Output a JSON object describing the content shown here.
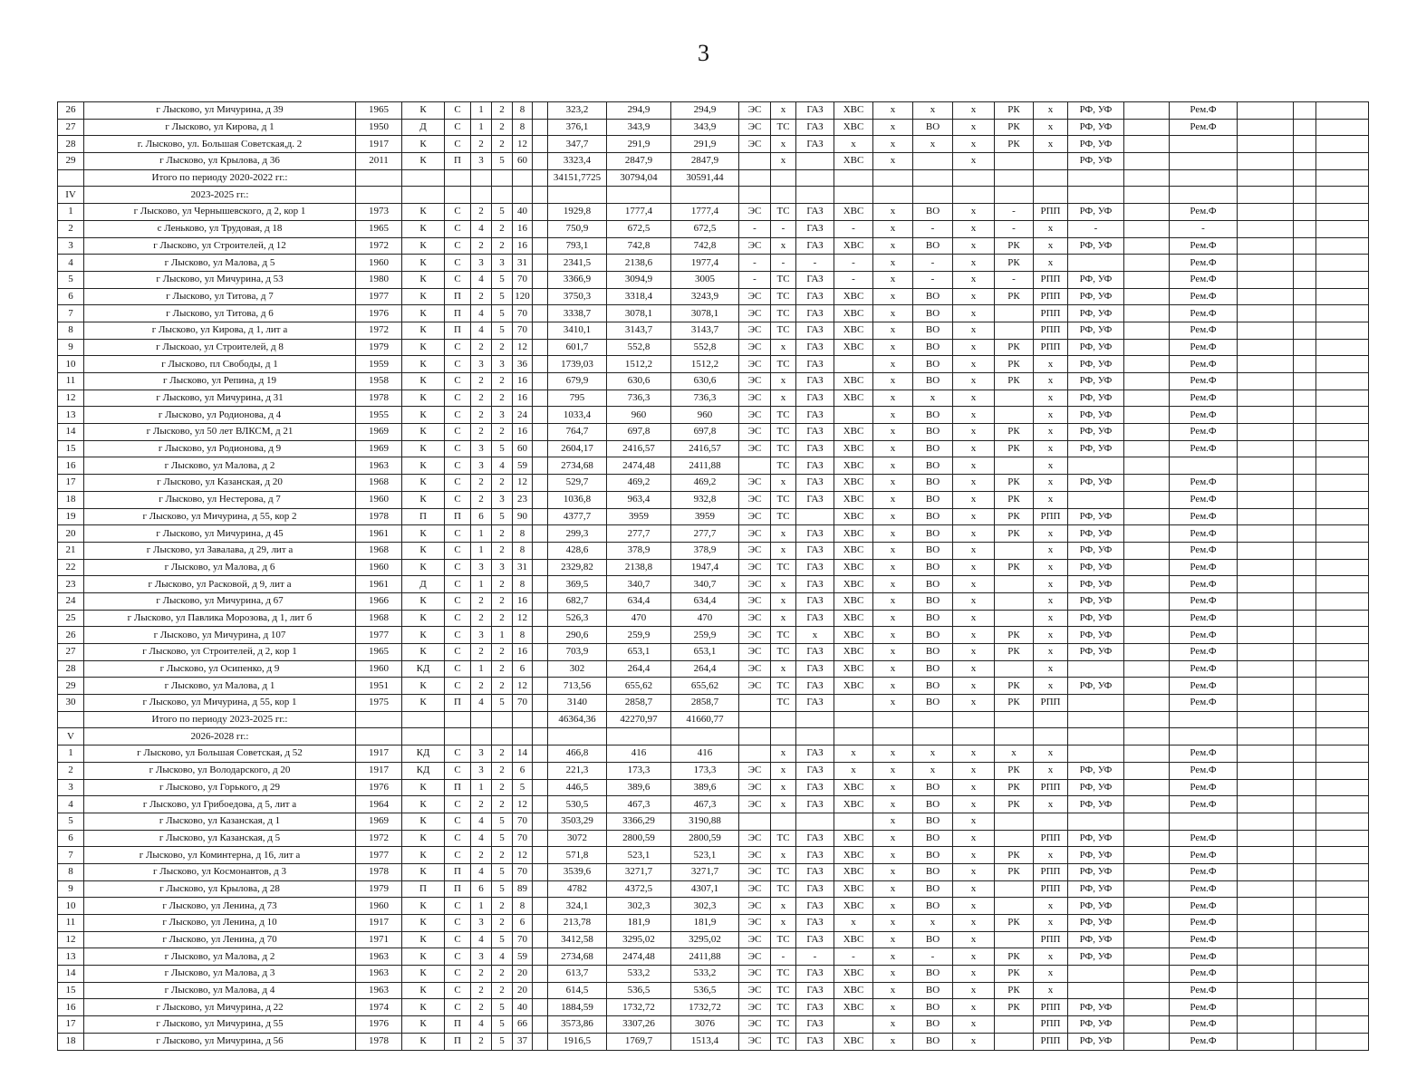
{
  "page_number": "3",
  "rows": [
    [
      "26",
      "г Лысково, ул Мичурина, д 39",
      "1965",
      "К",
      "С",
      "1",
      "2",
      "8",
      "323,2",
      "294,9",
      "294,9",
      "ЭС",
      "х",
      "ГАЗ",
      "ХВС",
      "х",
      "х",
      "х",
      "РК",
      "х",
      "РФ, УФ",
      "Рем.Ф"
    ],
    [
      "27",
      "г Лысково, ул Кирова, д 1",
      "1950",
      "Д",
      "С",
      "1",
      "2",
      "8",
      "376,1",
      "343,9",
      "343,9",
      "ЭС",
      "ТС",
      "ГАЗ",
      "ХВС",
      "х",
      "ВО",
      "х",
      "РК",
      "х",
      "РФ, УФ",
      "Рем.Ф"
    ],
    [
      "28",
      "г. Лысково, ул. Большая Советская,д. 2",
      "1917",
      "К",
      "С",
      "2",
      "2",
      "12",
      "347,7",
      "291,9",
      "291,9",
      "ЭС",
      "х",
      "ГАЗ",
      "х",
      "х",
      "х",
      "х",
      "РК",
      "х",
      "РФ, УФ",
      ""
    ],
    [
      "29",
      "г Лысково, ул Крылова, д 36",
      "2011",
      "К",
      "П",
      "3",
      "5",
      "60",
      "3323,4",
      "2847,9",
      "2847,9",
      "",
      "х",
      "",
      "ХВС",
      "х",
      "",
      "х",
      "",
      "",
      "РФ, УФ",
      ""
    ],
    [
      "",
      "Итого по периоду 2020-2022 гг.:",
      "",
      "",
      "",
      "",
      "",
      "",
      "34151,7725",
      "30794,04",
      "30591,44",
      "",
      "",
      "",
      "",
      "",
      "",
      "",
      "",
      "",
      "",
      ""
    ],
    [
      "IV",
      "2023-2025 гг.:",
      "",
      "",
      "",
      "",
      "",
      "",
      "",
      "",
      "",
      "",
      "",
      "",
      "",
      "",
      "",
      "",
      "",
      "",
      "",
      ""
    ],
    [
      "1",
      "г Лысково, ул Чернышевского, д 2, кор 1",
      "1973",
      "К",
      "С",
      "2",
      "5",
      "40",
      "1929,8",
      "1777,4",
      "1777,4",
      "ЭС",
      "ТС",
      "ГАЗ",
      "ХВС",
      "х",
      "ВО",
      "х",
      "-",
      "РПП",
      "РФ, УФ",
      "Рем.Ф"
    ],
    [
      "2",
      "с Леньково, ул Трудовая, д 18",
      "1965",
      "К",
      "С",
      "4",
      "2",
      "16",
      "750,9",
      "672,5",
      "672,5",
      "-",
      "-",
      "ГАЗ",
      "-",
      "х",
      "-",
      "х",
      "-",
      "х",
      "-",
      "-"
    ],
    [
      "3",
      "г Лысково, ул Строителей, д 12",
      "1972",
      "К",
      "С",
      "2",
      "2",
      "16",
      "793,1",
      "742,8",
      "742,8",
      "ЭС",
      "х",
      "ГАЗ",
      "ХВС",
      "х",
      "ВО",
      "х",
      "РК",
      "х",
      "РФ, УФ",
      "Рем.Ф"
    ],
    [
      "4",
      "г Лысково, ул Малова, д 5",
      "1960",
      "К",
      "С",
      "3",
      "3",
      "31",
      "2341,5",
      "2138,6",
      "1977,4",
      "-",
      "-",
      "-",
      "-",
      "х",
      "-",
      "х",
      "РК",
      "х",
      "",
      "Рем.Ф"
    ],
    [
      "5",
      "г Лысково, ул Мичурина, д 53",
      "1980",
      "К",
      "С",
      "4",
      "5",
      "70",
      "3366,9",
      "3094,9",
      "3005",
      "-",
      "ТС",
      "ГАЗ",
      "-",
      "х",
      "-",
      "х",
      "-",
      "РПП",
      "РФ, УФ",
      "Рем.Ф"
    ],
    [
      "6",
      "г Лысково, ул Титова, д 7",
      "1977",
      "К",
      "П",
      "2",
      "5",
      "120",
      "3750,3",
      "3318,4",
      "3243,9",
      "ЭС",
      "ТС",
      "ГАЗ",
      "ХВС",
      "х",
      "ВО",
      "х",
      "РК",
      "РПП",
      "РФ, УФ",
      "Рем.Ф"
    ],
    [
      "7",
      "г Лысково, ул Титова, д 6",
      "1976",
      "К",
      "П",
      "4",
      "5",
      "70",
      "3338,7",
      "3078,1",
      "3078,1",
      "ЭС",
      "ТС",
      "ГАЗ",
      "ХВС",
      "х",
      "ВО",
      "х",
      "",
      "РПП",
      "РФ, УФ",
      "Рем.Ф"
    ],
    [
      "8",
      "г Лысково, ул Кирова, д 1, лит а",
      "1972",
      "К",
      "П",
      "4",
      "5",
      "70",
      "3410,1",
      "3143,7",
      "3143,7",
      "ЭС",
      "ТС",
      "ГАЗ",
      "ХВС",
      "х",
      "ВО",
      "х",
      "",
      "РПП",
      "РФ, УФ",
      "Рем.Ф"
    ],
    [
      "9",
      "г Лыскоао, ул Строителей, д 8",
      "1979",
      "К",
      "С",
      "2",
      "2",
      "12",
      "601,7",
      "552,8",
      "552,8",
      "ЭС",
      "х",
      "ГАЗ",
      "ХВС",
      "х",
      "ВО",
      "х",
      "РК",
      "РПП",
      "РФ, УФ",
      "Рем.Ф"
    ],
    [
      "10",
      "г Лысково, пл Свободы, д 1",
      "1959",
      "К",
      "С",
      "3",
      "3",
      "36",
      "1739,03",
      "1512,2",
      "1512,2",
      "ЭС",
      "ТС",
      "ГАЗ",
      "",
      "х",
      "ВО",
      "х",
      "РК",
      "х",
      "РФ, УФ",
      "Рем.Ф"
    ],
    [
      "11",
      "г Лысково, ул Репина, д 19",
      "1958",
      "К",
      "С",
      "2",
      "2",
      "16",
      "679,9",
      "630,6",
      "630,6",
      "ЭС",
      "х",
      "ГАЗ",
      "ХВС",
      "х",
      "ВО",
      "х",
      "РК",
      "х",
      "РФ, УФ",
      "Рем.Ф"
    ],
    [
      "12",
      "г Лысково, ул Мичурина, д 31",
      "1978",
      "К",
      "С",
      "2",
      "2",
      "16",
      "795",
      "736,3",
      "736,3",
      "ЭС",
      "х",
      "ГАЗ",
      "ХВС",
      "х",
      "х",
      "х",
      "",
      "х",
      "РФ, УФ",
      "Рем.Ф"
    ],
    [
      "13",
      "г Лысково, ул Родионова, д 4",
      "1955",
      "К",
      "С",
      "2",
      "3",
      "24",
      "1033,4",
      "960",
      "960",
      "ЭС",
      "ТС",
      "ГАЗ",
      "",
      "х",
      "ВО",
      "х",
      "",
      "х",
      "РФ, УФ",
      "Рем.Ф"
    ],
    [
      "14",
      "г Лысково, ул 50 лет ВЛКСМ, д 21",
      "1969",
      "К",
      "С",
      "2",
      "2",
      "16",
      "764,7",
      "697,8",
      "697,8",
      "ЭС",
      "ТС",
      "ГАЗ",
      "ХВС",
      "х",
      "ВО",
      "х",
      "РК",
      "х",
      "РФ, УФ",
      "Рем.Ф"
    ],
    [
      "15",
      "г Лысково, ул Родионова, д 9",
      "1969",
      "К",
      "С",
      "3",
      "5",
      "60",
      "2604,17",
      "2416,57",
      "2416,57",
      "ЭС",
      "ТС",
      "ГАЗ",
      "ХВС",
      "х",
      "ВО",
      "х",
      "РК",
      "х",
      "РФ, УФ",
      "Рем.Ф"
    ],
    [
      "16",
      "г Лысково, ул Малова, д 2",
      "1963",
      "К",
      "С",
      "3",
      "4",
      "59",
      "2734,68",
      "2474,48",
      "2411,88",
      "",
      "ТС",
      "ГАЗ",
      "ХВС",
      "х",
      "ВО",
      "х",
      "",
      "х",
      "",
      ""
    ],
    [
      "17",
      "г Лысково, ул Казанская, д 20",
      "1968",
      "К",
      "С",
      "2",
      "2",
      "12",
      "529,7",
      "469,2",
      "469,2",
      "ЭС",
      "х",
      "ГАЗ",
      "ХВС",
      "х",
      "ВО",
      "х",
      "РК",
      "х",
      "РФ, УФ",
      "Рем.Ф"
    ],
    [
      "18",
      "г Лысково, ул Нестерова, д 7",
      "1960",
      "К",
      "С",
      "2",
      "3",
      "23",
      "1036,8",
      "963,4",
      "932,8",
      "ЭС",
      "ТС",
      "ГАЗ",
      "ХВС",
      "х",
      "ВО",
      "х",
      "РК",
      "х",
      "",
      "Рем.Ф"
    ],
    [
      "19",
      "г Лысково, ул Мичурина, д 55, кор 2",
      "1978",
      "П",
      "П",
      "6",
      "5",
      "90",
      "4377,7",
      "3959",
      "3959",
      "ЭС",
      "ТС",
      "",
      "ХВС",
      "х",
      "ВО",
      "х",
      "РК",
      "РПП",
      "РФ, УФ",
      "Рем.Ф"
    ],
    [
      "20",
      "г Лысково, ул Мичурина, д 45",
      "1961",
      "К",
      "С",
      "1",
      "2",
      "8",
      "299,3",
      "277,7",
      "277,7",
      "ЭС",
      "х",
      "ГАЗ",
      "ХВС",
      "х",
      "ВО",
      "х",
      "РК",
      "х",
      "РФ, УФ",
      "Рем.Ф"
    ],
    [
      "21",
      "г Лысково, ул Завалава, д 29, лит а",
      "1968",
      "К",
      "С",
      "1",
      "2",
      "8",
      "428,6",
      "378,9",
      "378,9",
      "ЭС",
      "х",
      "ГАЗ",
      "ХВС",
      "х",
      "ВО",
      "х",
      "",
      "х",
      "РФ, УФ",
      "Рем.Ф"
    ],
    [
      "22",
      "г Лысково, ул Малова, д 6",
      "1960",
      "К",
      "С",
      "3",
      "3",
      "31",
      "2329,82",
      "2138,8",
      "1947,4",
      "ЭС",
      "ТС",
      "ГАЗ",
      "ХВС",
      "х",
      "ВО",
      "х",
      "РК",
      "х",
      "РФ, УФ",
      "Рем.Ф"
    ],
    [
      "23",
      "г Лысково, ул Расковой, д 9, лит а",
      "1961",
      "Д",
      "С",
      "1",
      "2",
      "8",
      "369,5",
      "340,7",
      "340,7",
      "ЭС",
      "х",
      "ГАЗ",
      "ХВС",
      "х",
      "ВО",
      "х",
      "",
      "х",
      "РФ, УФ",
      "Рем.Ф"
    ],
    [
      "24",
      "г Лысково, ул Мичурина, д 67",
      "1966",
      "К",
      "С",
      "2",
      "2",
      "16",
      "682,7",
      "634,4",
      "634,4",
      "ЭС",
      "х",
      "ГАЗ",
      "ХВС",
      "х",
      "ВО",
      "х",
      "",
      "х",
      "РФ, УФ",
      "Рем.Ф"
    ],
    [
      "25",
      "г Лысково, ул Павлика Морозова, д 1, лит б",
      "1968",
      "К",
      "С",
      "2",
      "2",
      "12",
      "526,3",
      "470",
      "470",
      "ЭС",
      "х",
      "ГАЗ",
      "ХВС",
      "х",
      "ВО",
      "х",
      "",
      "х",
      "РФ, УФ",
      "Рем.Ф"
    ],
    [
      "26",
      "г Лысково, ул Мичурина, д 107",
      "1977",
      "К",
      "С",
      "3",
      "1",
      "8",
      "290,6",
      "259,9",
      "259,9",
      "ЭС",
      "ТС",
      "х",
      "ХВС",
      "х",
      "ВО",
      "х",
      "РК",
      "х",
      "РФ, УФ",
      "Рем.Ф"
    ],
    [
      "27",
      "г Лысково, ул Строителей, д 2, кор 1",
      "1965",
      "К",
      "С",
      "2",
      "2",
      "16",
      "703,9",
      "653,1",
      "653,1",
      "ЭС",
      "ТС",
      "ГАЗ",
      "ХВС",
      "х",
      "ВО",
      "х",
      "РК",
      "х",
      "РФ, УФ",
      "Рем.Ф"
    ],
    [
      "28",
      "г Лысково, ул Осипенко, д 9",
      "1960",
      "КД",
      "С",
      "1",
      "2",
      "6",
      "302",
      "264,4",
      "264,4",
      "ЭС",
      "х",
      "ГАЗ",
      "ХВС",
      "х",
      "ВО",
      "х",
      "",
      "х",
      "",
      "Рем.Ф"
    ],
    [
      "29",
      "г Лысково, ул Малова, д 1",
      "1951",
      "К",
      "С",
      "2",
      "2",
      "12",
      "713,56",
      "655,62",
      "655,62",
      "ЭС",
      "ТС",
      "ГАЗ",
      "ХВС",
      "х",
      "ВО",
      "х",
      "РК",
      "х",
      "РФ, УФ",
      "Рем.Ф"
    ],
    [
      "30",
      "г Лысково, ул Мичурина, д 55, кор 1",
      "1975",
      "К",
      "П",
      "4",
      "5",
      "70",
      "3140",
      "2858,7",
      "2858,7",
      "",
      "ТС",
      "ГАЗ",
      "",
      "х",
      "ВО",
      "х",
      "РК",
      "РПП",
      "",
      "Рем.Ф"
    ],
    [
      "",
      "Итого по периоду 2023-2025 гг.:",
      "",
      "",
      "",
      "",
      "",
      "",
      "46364,36",
      "42270,97",
      "41660,77",
      "",
      "",
      "",
      "",
      "",
      "",
      "",
      "",
      "",
      "",
      ""
    ],
    [
      "V",
      "2026-2028 гг.:",
      "",
      "",
      "",
      "",
      "",
      "",
      "",
      "",
      "",
      "",
      "",
      "",
      "",
      "",
      "",
      "",
      "",
      "",
      "",
      ""
    ],
    [
      "1",
      "г Лысково, ул Большая Советская, д 52",
      "1917",
      "КД",
      "С",
      "3",
      "2",
      "14",
      "466,8",
      "416",
      "416",
      "",
      "х",
      "ГАЗ",
      "х",
      "х",
      "х",
      "х",
      "х",
      "х",
      "",
      "Рем.Ф"
    ],
    [
      "2",
      "г Лысково, ул Володарского, д 20",
      "1917",
      "КД",
      "С",
      "3",
      "2",
      "6",
      "221,3",
      "173,3",
      "173,3",
      "ЭС",
      "х",
      "ГАЗ",
      "х",
      "х",
      "х",
      "х",
      "РК",
      "х",
      "РФ, УФ",
      "Рем.Ф"
    ],
    [
      "3",
      "г Лысково, ул Горького, д 29",
      "1976",
      "К",
      "П",
      "1",
      "2",
      "5",
      "446,5",
      "389,6",
      "389,6",
      "ЭС",
      "х",
      "ГАЗ",
      "ХВС",
      "х",
      "ВО",
      "х",
      "РК",
      "РПП",
      "РФ, УФ",
      "Рем.Ф"
    ],
    [
      "4",
      "г Лысково, ул Грибоедова, д 5, лит а",
      "1964",
      "К",
      "С",
      "2",
      "2",
      "12",
      "530,5",
      "467,3",
      "467,3",
      "ЭС",
      "х",
      "ГАЗ",
      "ХВС",
      "х",
      "ВО",
      "х",
      "РК",
      "х",
      "РФ, УФ",
      "Рем.Ф"
    ],
    [
      "5",
      "г Лысково, ул Казанская, д 1",
      "1969",
      "К",
      "С",
      "4",
      "5",
      "70",
      "3503,29",
      "3366,29",
      "3190,88",
      "",
      "",
      "",
      "",
      "х",
      "ВО",
      "х",
      "",
      "",
      "",
      ""
    ],
    [
      "6",
      "г Лысково, ул Казанская, д 5",
      "1972",
      "К",
      "С",
      "4",
      "5",
      "70",
      "3072",
      "2800,59",
      "2800,59",
      "ЭС",
      "ТС",
      "ГАЗ",
      "ХВС",
      "х",
      "ВО",
      "х",
      "",
      "РПП",
      "РФ, УФ",
      "Рем.Ф"
    ],
    [
      "7",
      "г Лысково, ул Коминтерна, д 16, лит а",
      "1977",
      "К",
      "С",
      "2",
      "2",
      "12",
      "571,8",
      "523,1",
      "523,1",
      "ЭС",
      "х",
      "ГАЗ",
      "ХВС",
      "х",
      "ВО",
      "х",
      "РК",
      "х",
      "РФ, УФ",
      "Рем.Ф"
    ],
    [
      "8",
      "г Лысково, ул Космонавтов, д 3",
      "1978",
      "К",
      "П",
      "4",
      "5",
      "70",
      "3539,6",
      "3271,7",
      "3271,7",
      "ЭС",
      "ТС",
      "ГАЗ",
      "ХВС",
      "х",
      "ВО",
      "х",
      "РК",
      "РПП",
      "РФ, УФ",
      "Рем.Ф"
    ],
    [
      "9",
      "г Лысково, ул Крылова, д 28",
      "1979",
      "П",
      "П",
      "6",
      "5",
      "89",
      "4782",
      "4372,5",
      "4307,1",
      "ЭС",
      "ТС",
      "ГАЗ",
      "ХВС",
      "х",
      "ВО",
      "х",
      "",
      "РПП",
      "РФ, УФ",
      "Рем.Ф"
    ],
    [
      "10",
      "г Лысково, ул Ленина, д 73",
      "1960",
      "К",
      "С",
      "1",
      "2",
      "8",
      "324,1",
      "302,3",
      "302,3",
      "ЭС",
      "х",
      "ГАЗ",
      "ХВС",
      "х",
      "ВО",
      "х",
      "",
      "х",
      "РФ, УФ",
      "Рем.Ф"
    ],
    [
      "11",
      "г Лысково, ул Ленина, д 10",
      "1917",
      "К",
      "С",
      "3",
      "2",
      "6",
      "213,78",
      "181,9",
      "181,9",
      "ЭС",
      "х",
      "ГАЗ",
      "х",
      "х",
      "х",
      "х",
      "РК",
      "х",
      "РФ, УФ",
      "Рем.Ф"
    ],
    [
      "12",
      "г Лысково, ул Ленина, д 70",
      "1971",
      "К",
      "С",
      "4",
      "5",
      "70",
      "3412,58",
      "3295,02",
      "3295,02",
      "ЭС",
      "ТС",
      "ГАЗ",
      "ХВС",
      "х",
      "ВО",
      "х",
      "",
      "РПП",
      "РФ, УФ",
      "Рем.Ф"
    ],
    [
      "13",
      "г Лысково, ул Малова, д 2",
      "1963",
      "К",
      "С",
      "3",
      "4",
      "59",
      "2734,68",
      "2474,48",
      "2411,88",
      "ЭС",
      "-",
      "-",
      "-",
      "х",
      "-",
      "х",
      "РК",
      "х",
      "РФ, УФ",
      "Рем.Ф"
    ],
    [
      "14",
      "г Лысково, ул Малова, д 3",
      "1963",
      "К",
      "С",
      "2",
      "2",
      "20",
      "613,7",
      "533,2",
      "533,2",
      "ЭС",
      "ТС",
      "ГАЗ",
      "ХВС",
      "х",
      "ВО",
      "х",
      "РК",
      "х",
      "",
      "Рем.Ф"
    ],
    [
      "15",
      "г Лысково, ул Малова, д 4",
      "1963",
      "К",
      "С",
      "2",
      "2",
      "20",
      "614,5",
      "536,5",
      "536,5",
      "ЭС",
      "ТС",
      "ГАЗ",
      "ХВС",
      "х",
      "ВО",
      "х",
      "РК",
      "х",
      "",
      "Рем.Ф"
    ],
    [
      "16",
      "г Лысково, ул Мичурина, д 22",
      "1974",
      "К",
      "С",
      "2",
      "5",
      "40",
      "1884,59",
      "1732,72",
      "1732,72",
      "ЭС",
      "ТС",
      "ГАЗ",
      "ХВС",
      "х",
      "ВО",
      "х",
      "РК",
      "РПП",
      "РФ, УФ",
      "Рем.Ф"
    ],
    [
      "17",
      "г Лысково, ул Мичурина, д 55",
      "1976",
      "К",
      "П",
      "4",
      "5",
      "66",
      "3573,86",
      "3307,26",
      "3076",
      "ЭС",
      "ТС",
      "ГАЗ",
      "",
      "х",
      "ВО",
      "х",
      "",
      "РПП",
      "РФ, УФ",
      "Рем.Ф"
    ],
    [
      "18",
      "г Лысково, ул Мичурина, д 56",
      "1978",
      "К",
      "П",
      "2",
      "5",
      "37",
      "1916,5",
      "1769,7",
      "1513,4",
      "ЭС",
      "ТС",
      "ГАЗ",
      "ХВС",
      "х",
      "ВО",
      "х",
      "",
      "РПП",
      "РФ, УФ",
      "Рем.Ф"
    ]
  ]
}
